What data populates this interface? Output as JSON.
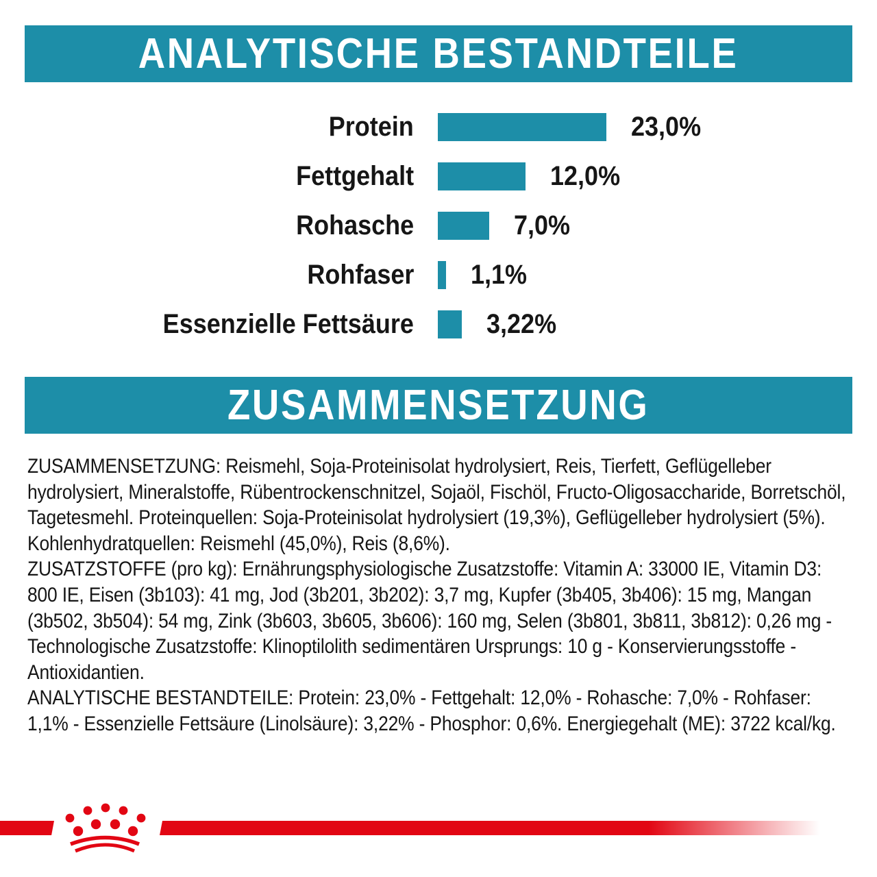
{
  "headers": {
    "analytical": "ANALYTISCHE BESTANDTEILE",
    "composition": "ZUSAMMENSETZUNG"
  },
  "chart_data": {
    "type": "bar",
    "orientation": "horizontal",
    "title": "ANALYTISCHE BESTANDTEILE",
    "categories": [
      "Protein",
      "Fettgehalt",
      "Rohasche",
      "Rohfaser",
      "Essenzielle Fettsäure"
    ],
    "values": [
      23.0,
      12.0,
      7.0,
      1.1,
      3.22
    ],
    "value_labels": [
      "23,0%",
      "12,0%",
      "7,0%",
      "1,1%",
      "3,22%"
    ],
    "unit": "%",
    "xlim": [
      0,
      25
    ],
    "grid": false,
    "legend": false,
    "bar_color": "#1d8ea8"
  },
  "composition": {
    "paragraphs": [
      "ZUSAMMENSETZUNG: Reismehl, Soja-Proteinisolat hydrolysiert, Reis, Tierfett, Geflügelleber hydrolysiert, Mineralstoffe, Rübentrockenschnitzel, Sojaöl, Fischöl, Fructo-Oligosaccharide, Borretschöl, Tagetesmehl. Proteinquellen: Soja-Proteinisolat hydrolysiert (19,3%), Geflügelleber hydrolysiert (5%). Kohlenhydratquellen: Reismehl (45,0%), Reis (8,6%).",
      "ZUSATZSTOFFE (pro kg): Ernährungsphysiologische Zusatzstoffe: Vitamin A: 33000 IE, Vitamin D3: 800 IE, Eisen (3b103): 41 mg, Jod (3b201, 3b202): 3,7 mg, Kupfer (3b405, 3b406): 15 mg, Mangan (3b502, 3b504): 54 mg, Zink (3b603, 3b605, 3b606): 160 mg, Selen (3b801, 3b811, 3b812): 0,26 mg - Technologische Zusatzstoffe: Klinoptilolith sedimentären Ursprungs: 10 g - Konservierungsstoffe - Antioxidantien.",
      "ANALYTISCHE BESTANDTEILE: Protein: 23,0% - Fettgehalt: 12,0% - Rohasche: 7,0% - Rohfaser: 1,1% - Essenzielle Fettsäure (Linolsäure): 3,22% - Phosphor: 0,6%. Energiegehalt (ME): 3722 kcal/kg."
    ]
  },
  "footer": {
    "logo_icon": "royal-canin-crown"
  },
  "colors": {
    "teal": "#1d8ea8",
    "red": "#e20613",
    "text": "#161616"
  }
}
